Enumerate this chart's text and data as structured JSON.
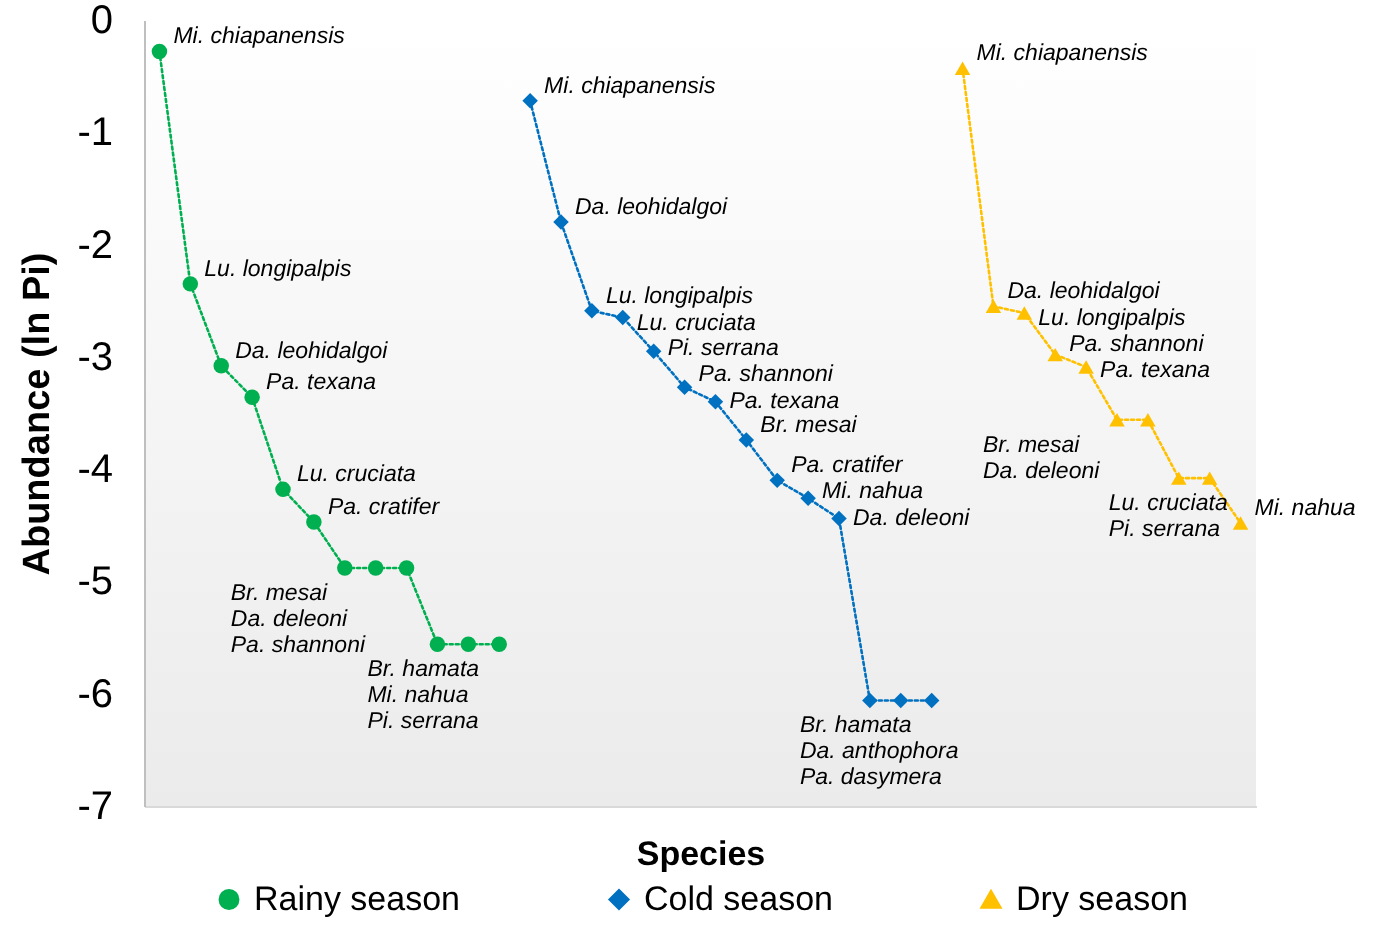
{
  "chart_data": {
    "type": "line",
    "xlabel": "Species",
    "ylabel": "Abundance (ln Pi)",
    "legend": "bottom",
    "line_style": "dotted",
    "tick_labels": "y",
    "ylim": [
      -7,
      0
    ],
    "yticks": [
      0,
      -1,
      -2,
      -3,
      -4,
      -5,
      -6,
      -7
    ],
    "categories": [
      null,
      null,
      null,
      null,
      null,
      null,
      null,
      null,
      null,
      null,
      null,
      null,
      null,
      null,
      null,
      null,
      null,
      null,
      null,
      null,
      null,
      null,
      null,
      null,
      null,
      null,
      null,
      null,
      null,
      null,
      null,
      null,
      null,
      null,
      null,
      null
    ],
    "series": [
      {
        "name": "Rainy season",
        "color": "#00b050",
        "marker": "circle",
        "values": [
          -0.28,
          -2.35,
          -3.08,
          -3.36,
          -4.18,
          -4.47,
          -4.88,
          -4.88,
          -4.88,
          -5.56,
          -5.56,
          -5.56,
          null,
          null,
          null,
          null,
          null,
          null,
          null,
          null,
          null,
          null,
          null,
          null,
          null,
          null,
          null,
          null,
          null,
          null,
          null,
          null,
          null,
          null,
          null,
          null
        ],
        "value_labels": [
          "Mi. chiapanensis",
          "Lu. longipalpis",
          "Da. leohidalgoi",
          "Pa. texana",
          "Lu. cruciata",
          "Pa. cratifer",
          "Br. mesai",
          "Da. deleoni",
          "Pa. shannoni",
          "Br. hamata",
          "Mi. nahua",
          "Pi. serrana",
          null,
          null,
          null,
          null,
          null,
          null,
          null,
          null,
          null,
          null,
          null,
          null,
          null,
          null,
          null,
          null,
          null,
          null,
          null,
          null,
          null,
          null,
          null,
          null
        ]
      },
      {
        "name": "Cold season",
        "color": "#0070c0",
        "marker": "diamond",
        "values": [
          null,
          null,
          null,
          null,
          null,
          null,
          null,
          null,
          null,
          null,
          null,
          null,
          -0.72,
          -1.8,
          -2.59,
          -2.65,
          -2.95,
          -3.27,
          -3.4,
          -3.74,
          -4.1,
          -4.26,
          -4.44,
          -6.06,
          -6.06,
          -6.06,
          null,
          null,
          null,
          null,
          null,
          null,
          null,
          null,
          null,
          null
        ],
        "value_labels": [
          null,
          null,
          null,
          null,
          null,
          null,
          null,
          null,
          null,
          null,
          null,
          null,
          "Mi. chiapanensis",
          "Da. leohidalgoi",
          "Lu. longipalpis",
          "Lu. cruciata",
          "Pi. serrana",
          "Pa. shannoni",
          "Pa. texana",
          "Br. mesai",
          "Pa. cratifer",
          "Mi. nahua",
          "Da. deleoni",
          "Br. hamata",
          "Da. anthophora",
          "Pa. dasymera",
          null,
          null,
          null,
          null,
          null,
          null,
          null,
          null,
          null,
          null
        ]
      },
      {
        "name": "Dry season",
        "color": "#ffc000",
        "marker": "triangle",
        "values": [
          null,
          null,
          null,
          null,
          null,
          null,
          null,
          null,
          null,
          null,
          null,
          null,
          null,
          null,
          null,
          null,
          null,
          null,
          null,
          null,
          null,
          null,
          null,
          null,
          null,
          null,
          -0.43,
          -2.55,
          -2.61,
          -2.98,
          -3.09,
          -3.56,
          -3.56,
          -4.08,
          -4.08,
          -4.48
        ],
        "value_labels": [
          null,
          null,
          null,
          null,
          null,
          null,
          null,
          null,
          null,
          null,
          null,
          null,
          null,
          null,
          null,
          null,
          null,
          null,
          null,
          null,
          null,
          null,
          null,
          null,
          null,
          null,
          "Mi. chiapanensis",
          "Da. leohidalgoi",
          "Lu. longipalpis",
          "Pa. shannoni",
          "Pa. texana",
          "Br. mesai",
          "Da. deleoni",
          "Lu. cruciata",
          "Pi. serrana",
          "Mi. nahua"
        ]
      }
    ]
  }
}
